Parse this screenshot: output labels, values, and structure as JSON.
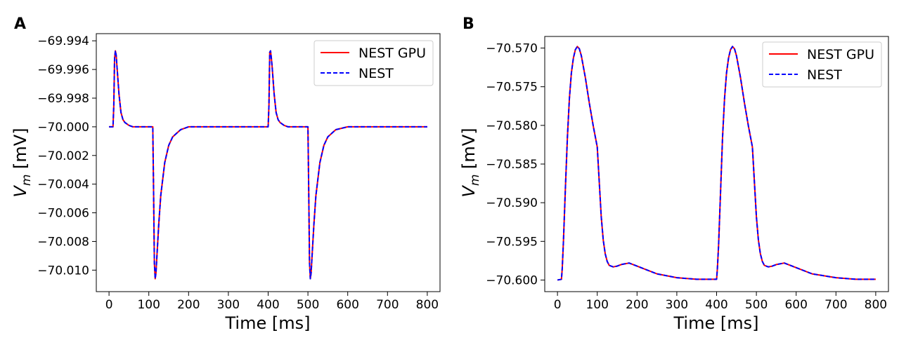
{
  "figure": {
    "panels": [
      "A",
      "B"
    ]
  },
  "chart_data": [
    {
      "panel": "A",
      "type": "line",
      "title": "",
      "xlabel": "Time [ms]",
      "ylabel_main": "V",
      "ylabel_sub": "m",
      "ylabel_unit": " [mV]",
      "xlim": [
        -32,
        832
      ],
      "ylim": [
        -70.0115,
        -69.9935
      ],
      "xticks": [
        0,
        100,
        200,
        300,
        400,
        500,
        600,
        700,
        800
      ],
      "yticks": [
        -70.01,
        -70.008,
        -70.006,
        -70.004,
        -70.002,
        -70.0,
        -69.998,
        -69.996,
        -69.994
      ],
      "ytick_labels": [
        "−70.010",
        "−70.008",
        "−70.006",
        "−70.004",
        "−70.002",
        "−70.000",
        "−69.998",
        "−69.996",
        "−69.994"
      ],
      "legend_position": "upper-right",
      "series": [
        {
          "name": "NEST GPU",
          "color": "#ff0000",
          "dash": "solid"
        },
        {
          "name": "NEST",
          "color": "#0000ff",
          "dash": "dashed"
        }
      ],
      "x": [
        0,
        10,
        12,
        14,
        16,
        18,
        20,
        25,
        30,
        35,
        40,
        50,
        60,
        80,
        100,
        110,
        112,
        114,
        116,
        118,
        120,
        125,
        130,
        140,
        150,
        160,
        180,
        200,
        250,
        300,
        400,
        402,
        404,
        406,
        408,
        410,
        415,
        420,
        425,
        430,
        440,
        450,
        470,
        490,
        500,
        502,
        504,
        506,
        508,
        510,
        515,
        520,
        530,
        540,
        550,
        570,
        600,
        700,
        800
      ],
      "y": [
        -70.0,
        -70.0,
        -69.9985,
        -69.9952,
        -69.9947,
        -69.995,
        -69.9958,
        -69.9977,
        -69.999,
        -69.9995,
        -69.9997,
        -69.9999,
        -70.0,
        -70.0,
        -70.0,
        -70.0,
        -70.0045,
        -70.0095,
        -70.0106,
        -70.0102,
        -70.0092,
        -70.0068,
        -70.0048,
        -70.0025,
        -70.0013,
        -70.0007,
        -70.0002,
        -70.0,
        -70.0,
        -70.0,
        -70.0,
        -69.9985,
        -69.9948,
        -69.9947,
        -69.9952,
        -69.9958,
        -69.9977,
        -69.999,
        -69.9995,
        -69.9997,
        -69.9999,
        -70.0,
        -70.0,
        -70.0,
        -70.0,
        -70.0045,
        -70.0095,
        -70.0106,
        -70.0102,
        -70.0092,
        -70.0068,
        -70.0048,
        -70.0025,
        -70.0013,
        -70.0007,
        -70.0002,
        -70.0,
        -70.0,
        -70.0
      ]
    },
    {
      "panel": "B",
      "type": "line",
      "title": "",
      "xlabel": "Time [ms]",
      "ylabel_main": "V",
      "ylabel_sub": "m",
      "ylabel_unit": " [mV]",
      "xlim": [
        -32,
        832
      ],
      "ylim": [
        -70.6015,
        -70.5685
      ],
      "xticks": [
        0,
        100,
        200,
        300,
        400,
        500,
        600,
        700,
        800
      ],
      "yticks": [
        -70.6,
        -70.595,
        -70.59,
        -70.585,
        -70.58,
        -70.575,
        -70.57
      ],
      "ytick_labels": [
        "−70.600",
        "−70.595",
        "−70.590",
        "−70.585",
        "−70.580",
        "−70.575",
        "−70.570"
      ],
      "legend_position": "upper-right",
      "series": [
        {
          "name": "NEST GPU",
          "color": "#ff0000",
          "dash": "solid"
        },
        {
          "name": "NEST",
          "color": "#0000ff",
          "dash": "dashed"
        }
      ],
      "x": [
        0,
        10,
        12,
        15,
        20,
        25,
        30,
        35,
        40,
        45,
        50,
        55,
        60,
        70,
        80,
        90,
        100,
        110,
        115,
        120,
        125,
        130,
        140,
        150,
        160,
        180,
        200,
        250,
        300,
        350,
        400,
        402,
        405,
        410,
        415,
        420,
        425,
        430,
        435,
        440,
        445,
        450,
        460,
        470,
        480,
        490,
        500,
        505,
        510,
        515,
        520,
        530,
        540,
        550,
        570,
        590,
        640,
        700,
        750,
        800
      ],
      "y": [
        -70.6,
        -70.5999,
        -70.5985,
        -70.595,
        -70.588,
        -70.5815,
        -70.5765,
        -70.5732,
        -70.5713,
        -70.5702,
        -70.5698,
        -70.5701,
        -70.571,
        -70.5738,
        -70.5771,
        -70.5801,
        -70.5828,
        -70.5918,
        -70.5948,
        -70.5966,
        -70.5976,
        -70.5981,
        -70.5983,
        -70.5982,
        -70.598,
        -70.5978,
        -70.5982,
        -70.5992,
        -70.5997,
        -70.5999,
        -70.5999,
        -70.5985,
        -70.5955,
        -70.5885,
        -70.5815,
        -70.5765,
        -70.5732,
        -70.5713,
        -70.5702,
        -70.5698,
        -70.5701,
        -70.571,
        -70.5738,
        -70.5771,
        -70.5801,
        -70.5828,
        -70.5918,
        -70.5948,
        -70.5966,
        -70.5976,
        -70.5981,
        -70.5983,
        -70.5982,
        -70.598,
        -70.5978,
        -70.5982,
        -70.5992,
        -70.5997,
        -70.5999,
        -70.5999
      ]
    }
  ]
}
